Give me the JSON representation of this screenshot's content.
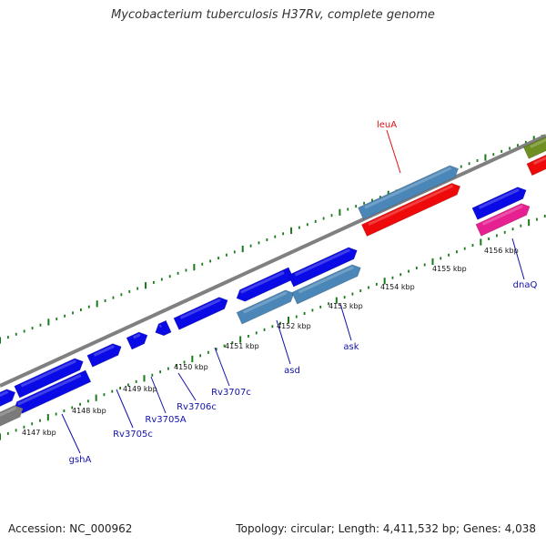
{
  "title": "Mycobacterium tuberculosis H37Rv, complete genome",
  "footer": {
    "accession": "Accession: NC_000962",
    "stats": "Topology: circular; Length: 4,411,532 bp; Genes: 4,038"
  },
  "colors": {
    "backbone": "#808080",
    "tick": "#1a7a1a",
    "cds_blue": "#0a0ae6",
    "cds_steel": "#4a86b8",
    "cds_red": "#ee0a0a",
    "cds_pink": "#e62090",
    "cds_olive": "#6f8f22",
    "cds_gray": "#7a7a7a",
    "label_red": "#dd1111",
    "label_blue": "#1111aa"
  },
  "kbp_labels": [
    "4147 kbp",
    "4148 kbp",
    "4149 kbp",
    "4150 kbp",
    "4151 kbp",
    "4152 kbp",
    "4153 kbp",
    "4154 kbp",
    "4155 kbp",
    "4156 kbp"
  ],
  "gene_labels": [
    "leuA",
    "dnaQ",
    "ask",
    "asd",
    "Rv3707c",
    "Rv3706c",
    "Rv3705A",
    "Rv3705c",
    "gshA"
  ]
}
